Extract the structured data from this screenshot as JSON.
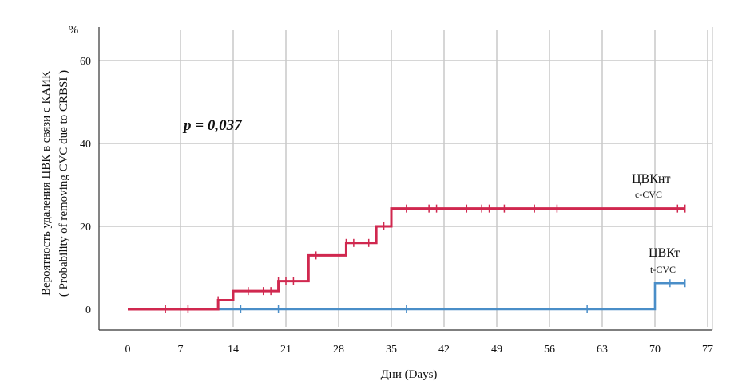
{
  "chart_data": {
    "type": "line",
    "subtype": "kaplan-meier step",
    "title": "",
    "xlabel": "Дни (Days)",
    "ylabel_line1": "Вероятность удаления ЦВК в связи с КАИК",
    "ylabel_line2": "( Probability of removing CVC due to CRBSI )",
    "y_unit": "%",
    "xlim": [
      0,
      77
    ],
    "ylim": [
      0,
      60
    ],
    "x_ticks": [
      0,
      7,
      14,
      21,
      28,
      35,
      42,
      49,
      56,
      63,
      70,
      77
    ],
    "y_ticks": [
      0,
      20,
      40,
      60
    ],
    "grid": true,
    "annotation": "p = 0,037",
    "series": [
      {
        "name_main": "ЦВКнт",
        "name_sub": "c-CVC",
        "color": "#d0284f",
        "steps": [
          [
            0,
            0
          ],
          [
            12,
            2.2
          ],
          [
            14,
            4.4
          ],
          [
            20,
            6.8
          ],
          [
            21,
            6.8
          ],
          [
            24,
            13
          ],
          [
            29,
            16
          ],
          [
            33,
            20
          ],
          [
            35,
            24.3
          ],
          [
            74,
            24.3
          ]
        ],
        "censored": [
          5,
          8,
          12,
          16,
          18,
          19,
          20,
          21,
          22,
          25,
          29,
          30,
          32,
          34,
          37,
          40,
          41,
          45,
          47,
          48,
          50,
          54,
          57,
          73,
          74
        ]
      },
      {
        "name_main": "ЦВКт",
        "name_sub": "t-CVC",
        "color": "#4a8ec8",
        "steps": [
          [
            0,
            0
          ],
          [
            70,
            6.3
          ],
          [
            74,
            6.3
          ]
        ],
        "censored": [
          15,
          20,
          37,
          61,
          72,
          74
        ]
      }
    ]
  }
}
